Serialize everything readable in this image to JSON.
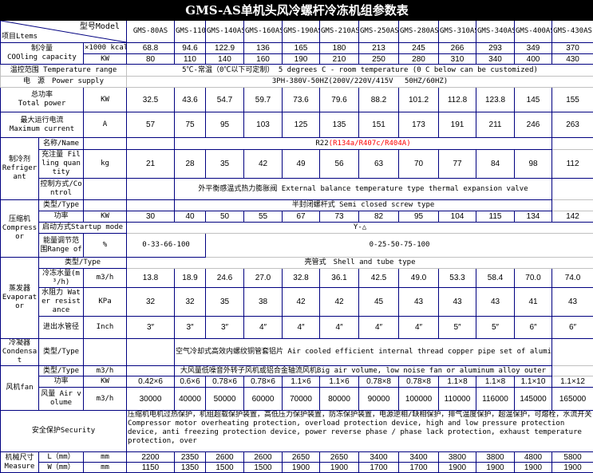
{
  "title": "GMS-AS单机头风冷螺杆冷冻机组参数表",
  "header": {
    "model_label": "型号Model",
    "items_label": "项目Ltems",
    "models": [
      "GMS-80AS",
      "GMS-110AS",
      "GMS-140AS",
      "GMS-160AS",
      "GMS-190AS",
      "GMS-210AS",
      "GMS-250AS",
      "GMS-280AS",
      "GMS-310AS",
      "GMS-340AS",
      "GMS-400AS",
      "GMS-430AS"
    ]
  },
  "cooling_capacity": {
    "label_cn": "制冷量",
    "label_en": "COOling capacity",
    "unit_kcal": "×1000 kcal/",
    "kcal": [
      "68.8",
      "94.6",
      "122.9",
      "136",
      "165",
      "180",
      "213",
      "245",
      "266",
      "293",
      "349",
      "370"
    ],
    "unit_kw": "KW",
    "kw": [
      "80",
      "110",
      "140",
      "160",
      "190",
      "210",
      "250",
      "280",
      "310",
      "340",
      "400",
      "430"
    ]
  },
  "temperature_range": {
    "label": "温控范围 Temperature range",
    "value": "5℃-常温（0℃以下可定制） 5 degrees C - room temperature (0 C below can be customized)"
  },
  "power_supply": {
    "label": "电　源　Power supply",
    "value": "3PH-380V-50HZ(200V/220V/415V　 50HZ/60HZ)"
  },
  "total_power": {
    "label_cn": "总功率",
    "label_en": "Total power",
    "unit": "KW",
    "values": [
      "32.5",
      "43.6",
      "54.7",
      "59.7",
      "73.6",
      "79.6",
      "88.2",
      "101.2",
      "112.8",
      "123.8",
      "145",
      "155"
    ]
  },
  "max_current": {
    "label_cn": "最大运行电流",
    "label_en": "Maximum current",
    "unit": "A",
    "values": [
      "57",
      "75",
      "95",
      "103",
      "125",
      "135",
      "151",
      "173",
      "191",
      "211",
      "246",
      "263"
    ]
  },
  "refrigerant": {
    "label_cn": "制冷剂",
    "label_en": "Refrigerant",
    "name_label": "名称/Name",
    "name_value": "R22",
    "name_alt": "(R134a/R407c/R404A)",
    "filling_label": "充注量 Filling quantity",
    "filling_unit": "kg",
    "filling": [
      "21",
      "28",
      "35",
      "42",
      "49",
      "56",
      "63",
      "70",
      "77",
      "84",
      "98",
      "112"
    ],
    "control_label": "控制方式/Control",
    "control_value": "外平衡感温式热力膨胀阀 External balance temperature type thermal expansion valve"
  },
  "compressor": {
    "label_cn": "压缩机",
    "label_en": "Compressor",
    "type_label": "类型/Type",
    "type_value": "半封闭螺杆式 Semi closed screw type",
    "power_label": "功率",
    "power_unit": "KW",
    "power": [
      "30",
      "40",
      "50",
      "55",
      "67",
      "73",
      "82",
      "95",
      "104",
      "115",
      "134",
      "142"
    ],
    "startup_label": "启动方式Startup mode",
    "startup_value": "Y-△",
    "range_label": "能量调节范围Range of",
    "range_unit": "%",
    "range_a": "0-33-66-100",
    "range_b": "0-25-50-75-100"
  },
  "evaporator": {
    "label_cn": "蒸发器",
    "label_en": "Evaporator",
    "type_label": "类型/Type",
    "type_value": "壳管式　Shell and tube type",
    "flow_label": "冷冻水量(m³/h)",
    "flow_unit": "m3/h",
    "flow": [
      "13.8",
      "18.9",
      "24.6",
      "27.0",
      "32.8",
      "36.1",
      "42.5",
      "49.0",
      "53.3",
      "58.4",
      "70.0",
      "74.0"
    ],
    "resistance_label": "水阻力 Water resistance",
    "resistance_unit": "KPa",
    "resistance": [
      "32",
      "32",
      "35",
      "38",
      "42",
      "42",
      "45",
      "43",
      "43",
      "43",
      "41",
      "43"
    ],
    "pipe_label": "进出水管径",
    "pipe_unit": "Inch",
    "pipe": [
      "3″",
      "3″",
      "3″",
      "4″",
      "4″",
      "4″",
      "4″",
      "4″",
      "5″",
      "5″",
      "6″",
      "6″"
    ]
  },
  "condenser": {
    "label_cn": "冷凝器",
    "label_en": "Condensat",
    "type_label": "类型/Type",
    "type_value": "空气冷却式高效内螺纹铜管套铝片 Air cooled efficient internal thread copper pipe set of aluminu"
  },
  "fan": {
    "label": "风机fan",
    "type_label": "类型/Type",
    "type_unit": "m3/h",
    "type_value": "大风量低噪音外转子风机或铝合金轴流风机Big air volume, low noise fan or aluminum alloy outer",
    "power_label": "功率",
    "power_unit": "KW",
    "power": [
      "0.42×6",
      "0.6×6",
      "0.78×6",
      "0.78×6",
      "1.1×6",
      "1.1×6",
      "0.78×8",
      "0.78×8",
      "1.1×8",
      "1.1×8",
      "1.1×10",
      "1.1×12"
    ],
    "air_label": "风量 Air volume",
    "air_unit": "m3/h",
    "air": [
      "30000",
      "40000",
      "50000",
      "60000",
      "70000",
      "80000",
      "90000",
      "100000",
      "110000",
      "116000",
      "145000",
      "165000"
    ]
  },
  "security": {
    "label": "安全保护Security",
    "value_cn": "压缩机电机过热保护，机组超载保护装置，高低压力保护装置，防冻保护装置，电源逆相/缺相保护，排气温度保护，超温保护，可熔栓，水流开关",
    "value_en": "Compressor motor overheating protection, overload protection device, high and low pressure protection device, anti freezing protection device, power reverse phase / phase lack protection, exhaust temperature protection, over"
  },
  "dimensions": {
    "label_cn": "机械尺寸",
    "label_en": "Measure",
    "l_label": "L（mm）",
    "l_unit": "mm",
    "l": [
      "2200",
      "2350",
      "2600",
      "2600",
      "2650",
      "2650",
      "3400",
      "3400",
      "3800",
      "3800",
      "4800",
      "5800"
    ],
    "w_label": "W（mm）",
    "w_unit": "mm",
    "w": [
      "1150",
      "1350",
      "1500",
      "1500",
      "1900",
      "1900",
      "1700",
      "1700",
      "1900",
      "1900",
      "1900",
      "1900"
    ]
  },
  "colors": {
    "title_bg": "#000000",
    "grid": "#000080",
    "alt_refrigerant": "#ff0000"
  }
}
